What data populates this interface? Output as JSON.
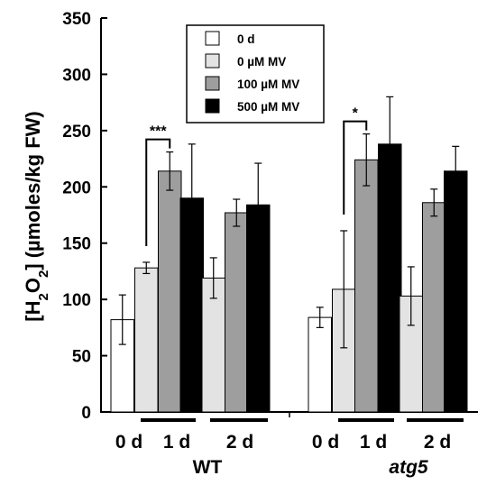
{
  "chart_data": {
    "type": "bar",
    "ylabel": "[H2O2] (µmoles/kg FW)",
    "ylabel_parts": {
      "open": "[H",
      "sub1": "2",
      "mid": "O",
      "sub2": "2",
      "close": "] (µmoles/kg FW)"
    },
    "ylim": [
      0,
      350
    ],
    "yticks": [
      "0",
      "50",
      "100",
      "150",
      "200",
      "250",
      "300",
      "350"
    ],
    "grid": false,
    "legend_position": "top-center",
    "series": [
      {
        "name": "0 d",
        "color": "#ffffff"
      },
      {
        "name": "0 µM MV",
        "color": "#e3e3e3"
      },
      {
        "name": "100 µM MV",
        "color": "#9e9e9e"
      },
      {
        "name": "500 µM MV",
        "color": "#000000"
      }
    ],
    "groups": [
      {
        "genotype": "WT",
        "time_labels": [
          "0 d",
          "1 d",
          "2 d"
        ],
        "bars": [
          {
            "series": "0 d",
            "time": "0 d",
            "value": 82,
            "error": 22
          },
          {
            "series": "0 µM MV",
            "time": "1 d",
            "value": 128,
            "error": 5
          },
          {
            "series": "100 µM MV",
            "time": "1 d",
            "value": 214,
            "error": 17
          },
          {
            "series": "500 µM MV",
            "time": "1 d",
            "value": 190,
            "error": 48
          },
          {
            "series": "0 µM MV",
            "time": "2 d",
            "value": 119,
            "error": 18
          },
          {
            "series": "100 µM MV",
            "time": "2 d",
            "value": 177,
            "error": 12
          },
          {
            "series": "500 µM MV",
            "time": "2 d",
            "value": 184,
            "error": 37
          }
        ],
        "significance": {
          "label": "***",
          "between": [
            "0 µM MV",
            "100 µM MV"
          ],
          "time": "1 d"
        }
      },
      {
        "genotype": "atg5",
        "time_labels": [
          "0 d",
          "1 d",
          "2 d"
        ],
        "bars": [
          {
            "series": "0 d",
            "time": "0 d",
            "value": 84,
            "error": 9
          },
          {
            "series": "0 µM MV",
            "time": "1 d",
            "value": 109,
            "error": 52
          },
          {
            "series": "100 µM MV",
            "time": "1 d",
            "value": 224,
            "error": 23
          },
          {
            "series": "500 µM MV",
            "time": "1 d",
            "value": 238,
            "error": 42
          },
          {
            "series": "0 µM MV",
            "time": "2 d",
            "value": 103,
            "error": 26
          },
          {
            "series": "100 µM MV",
            "time": "2 d",
            "value": 186,
            "error": 12
          },
          {
            "series": "500 µM MV",
            "time": "2 d",
            "value": 214,
            "error": 22
          }
        ],
        "significance": {
          "label": "*",
          "between": [
            "0 µM MV",
            "100 µM MV"
          ],
          "time": "1 d"
        }
      }
    ]
  }
}
